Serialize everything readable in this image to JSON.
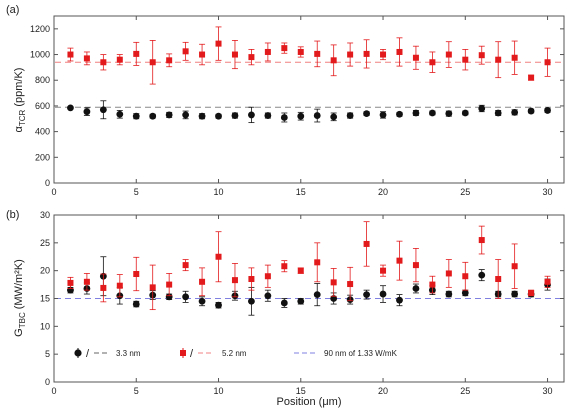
{
  "chart_data": [
    {
      "type": "scatter",
      "panel_label": "(a)",
      "ylabel_main": "α",
      "ylabel_sub": "TCR",
      "ylabel_unit": "(ppm/K)",
      "xlabel": "",
      "xlim": [
        0,
        31
      ],
      "ylim": [
        0,
        1300
      ],
      "xticks": [
        0,
        5,
        10,
        15,
        20,
        25,
        30
      ],
      "yticks": [
        0,
        200,
        400,
        600,
        800,
        1000,
        1200
      ],
      "series": [
        {
          "color": "#111111",
          "marker": "circle",
          "x": [
            1,
            2,
            3,
            4,
            5,
            6,
            7,
            8,
            9,
            10,
            11,
            12,
            13,
            14,
            15,
            16,
            17,
            18,
            19,
            20,
            21,
            22,
            23,
            24,
            25,
            26,
            27,
            28,
            29,
            30
          ],
          "y": [
            585,
            555,
            570,
            535,
            520,
            520,
            530,
            530,
            520,
            520,
            525,
            530,
            525,
            510,
            520,
            525,
            515,
            525,
            540,
            530,
            535,
            545,
            545,
            540,
            545,
            580,
            545,
            550,
            560,
            565
          ],
          "err": [
            10,
            30,
            70,
            30,
            20,
            15,
            20,
            30,
            20,
            15,
            20,
            60,
            20,
            35,
            30,
            50,
            30,
            20,
            15,
            25,
            15,
            20,
            15,
            20,
            15,
            25,
            20,
            20,
            15,
            15
          ]
        },
        {
          "color": "#e31a1c",
          "marker": "square",
          "x": [
            1,
            2,
            3,
            4,
            5,
            6,
            7,
            8,
            9,
            10,
            11,
            12,
            13,
            14,
            15,
            16,
            17,
            18,
            19,
            20,
            21,
            22,
            23,
            24,
            25,
            26,
            27,
            28,
            29,
            30
          ],
          "y": [
            1000,
            970,
            940,
            960,
            1005,
            940,
            955,
            1025,
            1000,
            1085,
            1000,
            980,
            1020,
            1050,
            1020,
            1005,
            955,
            1000,
            1005,
            1000,
            1020,
            975,
            940,
            1000,
            960,
            995,
            960,
            975,
            820,
            940
          ],
          "err": [
            50,
            50,
            60,
            40,
            90,
            170,
            50,
            70,
            80,
            130,
            110,
            60,
            70,
            40,
            40,
            100,
            120,
            90,
            110,
            40,
            110,
            90,
            80,
            100,
            80,
            70,
            140,
            130,
            20,
            110
          ]
        }
      ],
      "reference_lines": [
        {
          "y": 590,
          "color": "#888888"
        },
        {
          "y": 940,
          "color": "#f08080"
        }
      ]
    },
    {
      "type": "scatter",
      "panel_label": "(b)",
      "ylabel_main": "G",
      "ylabel_sub": "TBC",
      "ylabel_unit": "(MW/m²K)",
      "xlabel": "Position (μm)",
      "xlim": [
        0,
        31
      ],
      "ylim": [
        0,
        30
      ],
      "xticks": [
        0,
        5,
        10,
        15,
        20,
        25,
        30
      ],
      "yticks": [
        0,
        5,
        10,
        15,
        20,
        25,
        30
      ],
      "series": [
        {
          "name": "3.3 nm",
          "color": "#111111",
          "marker": "circle",
          "x": [
            1,
            2,
            3,
            4,
            5,
            6,
            7,
            8,
            9,
            10,
            11,
            12,
            13,
            14,
            15,
            16,
            17,
            18,
            19,
            20,
            21,
            22,
            23,
            24,
            25,
            26,
            27,
            28,
            29,
            30
          ],
          "y": [
            16.5,
            16.8,
            19.0,
            15.5,
            14.0,
            15.6,
            15.3,
            15.3,
            14.5,
            13.8,
            15.5,
            14.5,
            15.5,
            14.2,
            14.5,
            15.7,
            15.0,
            14.8,
            15.7,
            15.8,
            14.7,
            16.8,
            16.5,
            15.8,
            16.0,
            19.2,
            15.8,
            15.8,
            15.8,
            17.5
          ],
          "err": [
            0.5,
            1.0,
            3.5,
            1.5,
            0.5,
            0.8,
            0.5,
            1.0,
            0.8,
            0.5,
            0.8,
            2.5,
            1.0,
            0.8,
            0.5,
            2.0,
            1.0,
            0.8,
            0.8,
            1.5,
            1.0,
            0.8,
            0.8,
            0.5,
            0.5,
            1.0,
            0.5,
            0.5,
            0.5,
            1.0
          ]
        },
        {
          "name": "5.2 nm",
          "color": "#e31a1c",
          "marker": "square",
          "x": [
            1,
            2,
            3,
            4,
            5,
            6,
            7,
            8,
            9,
            10,
            11,
            12,
            13,
            14,
            15,
            16,
            17,
            18,
            19,
            20,
            21,
            22,
            23,
            24,
            25,
            26,
            27,
            28,
            29,
            30
          ],
          "y": [
            17.8,
            18.0,
            16.9,
            17.3,
            19.4,
            17.0,
            17.5,
            21.0,
            18.0,
            22.5,
            18.3,
            18.5,
            19.0,
            20.8,
            20.0,
            21.5,
            17.9,
            17.6,
            24.8,
            20.0,
            21.8,
            21.0,
            17.5,
            19.5,
            19.0,
            25.5,
            18.5,
            20.8,
            16.0,
            18.0
          ],
          "err": [
            1.0,
            1.5,
            2.5,
            2.0,
            3.0,
            4.0,
            2.0,
            1.0,
            2.5,
            4.5,
            3.0,
            2.0,
            2.0,
            1.0,
            0.5,
            3.5,
            2.5,
            3.0,
            4.0,
            1.0,
            3.5,
            3.0,
            1.5,
            2.5,
            2.5,
            2.5,
            3.5,
            4.0,
            0.5,
            1.0
          ]
        }
      ],
      "reference_lines": [
        {
          "y": 15.0,
          "color": "#8080e0",
          "name": "90 nm of 1.33 W/mK"
        }
      ]
    }
  ],
  "legend": {
    "item1_label": "3.3 nm",
    "item2_label": "5.2 nm",
    "item3_label": "90 nm of 1.33 W/mK",
    "slash": "/"
  }
}
